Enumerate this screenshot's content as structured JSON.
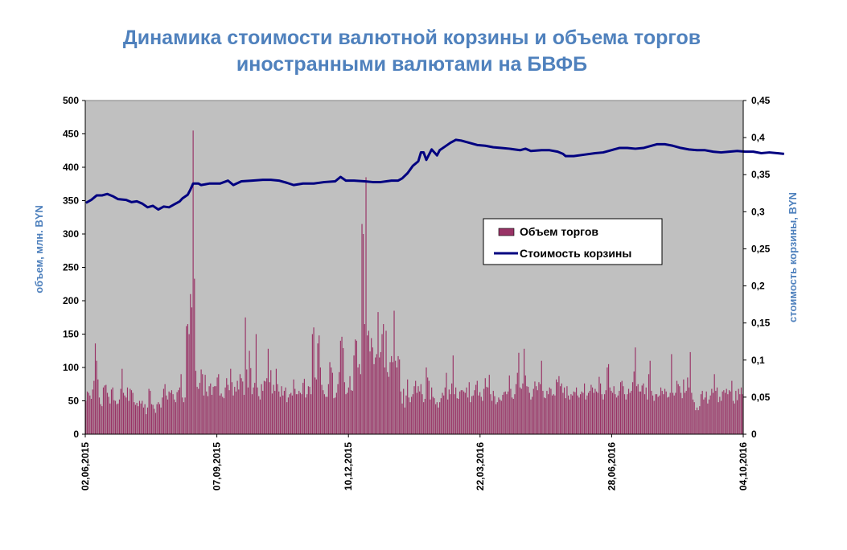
{
  "chart_data": {
    "type": "bar",
    "title_lines": [
      "Динамика стоимости валютной корзины и объема торгов",
      "иностранными валютами на БВФБ"
    ],
    "ylabel_left": "объем, млн. BYN",
    "ylabel_right": "стоимость корзины, BYN",
    "ylim_left": [
      0,
      500
    ],
    "ylim_right": [
      0,
      0.45
    ],
    "yticks_left": [
      "0",
      "50",
      "100",
      "150",
      "200",
      "250",
      "300",
      "350",
      "400",
      "450",
      "500"
    ],
    "yticks_right": [
      "0",
      "0,05",
      "0,1",
      "0,15",
      "0,2",
      "0,25",
      "0,3",
      "0,35",
      "0,4",
      "0,45"
    ],
    "x_tick_labels": [
      "02,06,2015",
      "07,09,2015",
      "10,12,2015",
      "22,03,2016",
      "28,06,2016",
      "04,10,2016"
    ],
    "plot_background": "#c0c0c0",
    "legend": {
      "position": "center-right",
      "entries": [
        "Объем торгов",
        "Стоимость корзины"
      ]
    },
    "series": [
      {
        "name": "Объем торгов",
        "kind": "bar",
        "color": "#993366",
        "values": [
          50,
          64,
          62,
          58,
          53,
          67,
          80,
          136,
          110,
          82,
          55,
          45,
          42,
          70,
          73,
          74,
          62,
          56,
          46,
          67,
          70,
          51,
          50,
          45,
          46,
          52,
          68,
          98,
          62,
          58,
          55,
          70,
          50,
          68,
          66,
          62,
          48,
          44,
          47,
          42,
          50,
          46,
          50,
          40,
          45,
          30,
          40,
          68,
          65,
          45,
          44,
          38,
          32,
          45,
          48,
          45,
          40,
          55,
          68,
          75,
          58,
          52,
          64,
          62,
          66,
          60,
          52,
          48,
          63,
          66,
          70,
          90,
          55,
          48,
          55,
          162,
          165,
          150,
          210,
          190,
          455,
          233,
          95,
          71,
          68,
          77,
          97,
          90,
          58,
          89,
          64,
          57,
          72,
          76,
          59,
          71,
          72,
          72,
          85,
          90,
          58,
          61,
          56,
          54,
          70,
          84,
          74,
          66,
          98,
          78,
          58,
          71,
          64,
          80,
          67,
          90,
          84,
          79,
          59,
          175,
          97,
          70,
          125,
          99,
          60,
          70,
          77,
          150,
          70,
          57,
          52,
          75,
          65,
          80,
          79,
          84,
          128,
          78,
          96,
          61,
          74,
          65,
          98,
          75,
          64,
          56,
          72,
          58,
          65,
          70,
          48,
          55,
          60,
          62,
          58,
          82,
          68,
          60,
          60,
          65,
          62,
          60,
          77,
          83,
          55,
          60,
          72,
          71,
          60,
          150,
          160,
          85,
          82,
          136,
          148,
          100,
          74,
          66,
          60,
          56,
          56,
          75,
          108,
          100,
          92,
          54,
          55,
          62,
          75,
          93,
          140,
          146,
          129,
          78,
          60,
          62,
          70,
          87,
          66,
          65,
          118,
          142,
          140,
          100,
          105,
          90,
          315,
          300,
          165,
          385,
          148,
          155,
          124,
          144,
          130,
          105,
          115,
          120,
          183,
          115,
          123,
          150,
          165,
          100,
          155,
          93,
          86,
          108,
          117,
          108,
          185,
          110,
          100,
          117,
          112,
          64,
          46,
          68,
          40,
          58,
          82,
          55,
          48,
          56,
          60,
          72,
          80,
          62,
          72,
          64,
          75,
          60,
          48,
          53,
          100,
          85,
          80,
          52,
          70,
          56,
          54,
          45,
          48,
          40,
          48,
          54,
          62,
          58,
          70,
          92,
          52,
          67,
          60,
          76,
          118,
          60,
          70,
          54,
          53,
          64,
          66,
          66,
          64,
          62,
          70,
          55,
          78,
          48,
          57,
          58,
          66,
          74,
          80,
          58,
          63,
          56,
          50,
          68,
          84,
          71,
          70,
          89,
          60,
          50,
          65,
          57,
          45,
          48,
          55,
          52,
          50,
          59,
          63,
          64,
          60,
          64,
          88,
          68,
          55,
          53,
          60,
          75,
          92,
          122,
          70,
          68,
          76,
          128,
          88,
          72,
          71,
          62,
          52,
          56,
          68,
          79,
          72,
          66,
          78,
          75,
          110,
          65,
          55,
          54,
          65,
          60,
          70,
          68,
          58,
          60,
          58,
          82,
          78,
          87,
          72,
          76,
          62,
          70,
          54,
          72,
          58,
          52,
          60,
          58,
          64,
          63,
          70,
          58,
          55,
          60,
          64,
          62,
          76,
          52,
          58,
          62,
          65,
          74,
          70,
          62,
          68,
          64,
          62,
          86,
          76,
          60,
          52,
          60,
          66,
          100,
          105,
          70,
          65,
          62,
          72,
          60,
          55,
          58,
          65,
          78,
          80,
          72,
          60,
          52,
          60,
          68,
          62,
          65,
          78,
          94,
          130,
          72,
          75,
          64,
          64,
          73,
          76,
          60,
          70,
          52,
          90,
          110,
          65,
          58,
          50,
          60,
          60,
          56,
          58,
          70,
          65,
          60,
          68,
          64,
          55,
          56,
          62,
          120,
          62,
          58,
          62,
          80,
          75,
          72,
          62,
          54,
          82,
          62,
          65,
          85,
          70,
          123,
          62,
          52,
          48,
          36,
          40,
          36,
          42,
          60,
          65,
          52,
          55,
          64,
          46,
          52,
          58,
          68,
          62,
          90,
          65,
          70,
          48,
          56,
          50,
          64,
          66,
          62,
          68,
          60,
          66,
          64,
          80,
          50,
          46,
          65,
          51,
          68,
          60,
          70,
          60
        ]
      },
      {
        "name": "Стоимость корзины",
        "kind": "line",
        "color": "#000080",
        "points": [
          [
            0,
            0.312
          ],
          [
            4,
            0.316
          ],
          [
            8,
            0.322
          ],
          [
            12,
            0.322
          ],
          [
            16,
            0.324
          ],
          [
            20,
            0.321
          ],
          [
            24,
            0.317
          ],
          [
            30,
            0.316
          ],
          [
            34,
            0.313
          ],
          [
            38,
            0.314
          ],
          [
            42,
            0.311
          ],
          [
            46,
            0.306
          ],
          [
            50,
            0.308
          ],
          [
            54,
            0.303
          ],
          [
            58,
            0.307
          ],
          [
            62,
            0.306
          ],
          [
            66,
            0.31
          ],
          [
            70,
            0.314
          ],
          [
            72,
            0.318
          ],
          [
            76,
            0.323
          ],
          [
            78,
            0.33
          ],
          [
            80,
            0.338
          ],
          [
            84,
            0.338
          ],
          [
            86,
            0.336
          ],
          [
            92,
            0.338
          ],
          [
            100,
            0.338
          ],
          [
            106,
            0.342
          ],
          [
            110,
            0.336
          ],
          [
            116,
            0.341
          ],
          [
            124,
            0.342
          ],
          [
            132,
            0.343
          ],
          [
            138,
            0.343
          ],
          [
            144,
            0.342
          ],
          [
            150,
            0.339
          ],
          [
            155,
            0.336
          ],
          [
            162,
            0.338
          ],
          [
            170,
            0.338
          ],
          [
            178,
            0.34
          ],
          [
            186,
            0.341
          ],
          [
            190,
            0.347
          ],
          [
            194,
            0.342
          ],
          [
            200,
            0.342
          ],
          [
            208,
            0.341
          ],
          [
            214,
            0.34
          ],
          [
            220,
            0.34
          ],
          [
            228,
            0.342
          ],
          [
            233,
            0.342
          ],
          [
            236,
            0.345
          ],
          [
            240,
            0.352
          ],
          [
            244,
            0.362
          ],
          [
            248,
            0.368
          ],
          [
            250,
            0.38
          ],
          [
            252,
            0.38
          ],
          [
            254,
            0.37
          ],
          [
            258,
            0.384
          ],
          [
            262,
            0.376
          ],
          [
            264,
            0.383
          ],
          [
            268,
            0.388
          ],
          [
            272,
            0.393
          ],
          [
            276,
            0.397
          ],
          [
            280,
            0.396
          ],
          [
            286,
            0.393
          ],
          [
            292,
            0.39
          ],
          [
            298,
            0.389
          ],
          [
            304,
            0.387
          ],
          [
            310,
            0.386
          ],
          [
            316,
            0.385
          ],
          [
            320,
            0.384
          ],
          [
            324,
            0.383
          ],
          [
            328,
            0.385
          ],
          [
            332,
            0.382
          ],
          [
            340,
            0.383
          ],
          [
            346,
            0.383
          ],
          [
            352,
            0.381
          ],
          [
            356,
            0.378
          ],
          [
            358,
            0.375
          ],
          [
            364,
            0.375
          ],
          [
            372,
            0.377
          ],
          [
            380,
            0.379
          ],
          [
            386,
            0.38
          ],
          [
            392,
            0.383
          ],
          [
            398,
            0.386
          ],
          [
            404,
            0.386
          ],
          [
            410,
            0.385
          ],
          [
            416,
            0.386
          ],
          [
            420,
            0.388
          ],
          [
            426,
            0.391
          ],
          [
            432,
            0.391
          ],
          [
            438,
            0.389
          ],
          [
            444,
            0.386
          ],
          [
            450,
            0.384
          ],
          [
            456,
            0.383
          ],
          [
            462,
            0.383
          ],
          [
            468,
            0.381
          ],
          [
            474,
            0.38
          ],
          [
            480,
            0.381
          ],
          [
            486,
            0.382
          ],
          [
            492,
            0.381
          ],
          [
            498,
            0.381
          ],
          [
            504,
            0.379
          ],
          [
            510,
            0.38
          ],
          [
            516,
            0.379
          ],
          [
            521,
            0.378
          ]
        ]
      }
    ]
  }
}
